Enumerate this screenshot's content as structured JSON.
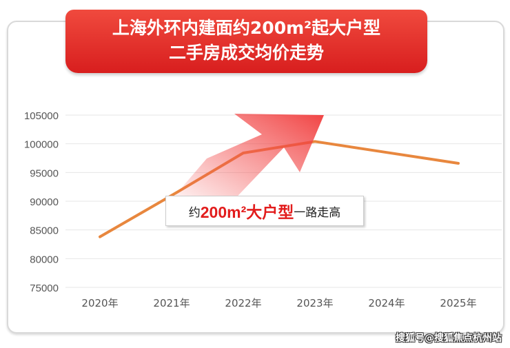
{
  "chart_data": {
    "type": "line",
    "title": [
      "上海外环内建面约200m²起大户型",
      "二手房成交均价走势"
    ],
    "categories": [
      "2020年",
      "2021年",
      "2022年",
      "2023年",
      "2024年",
      "2025年"
    ],
    "values": [
      83800,
      91000,
      98400,
      100400,
      98500,
      96600
    ],
    "ylim": [
      75000,
      105000
    ],
    "yticks": [
      75000,
      80000,
      85000,
      90000,
      95000,
      100000,
      105000
    ],
    "grid": true,
    "line_color": "#e8873e",
    "annotation": {
      "prefix": "约",
      "highlight": "200m²大户型",
      "suffix": "一路走高"
    }
  },
  "watermark": "搜狐号@搜狐焦点杭州站"
}
